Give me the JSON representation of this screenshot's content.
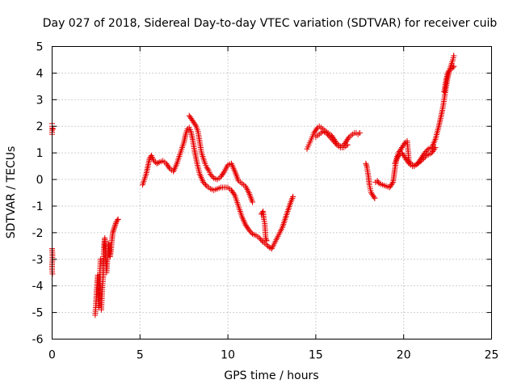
{
  "chart_data": {
    "type": "scatter",
    "title": "Day 027 of 2018, Sidereal Day-to-day VTEC variation (SDTVAR) for receiver cuib",
    "xlabel": "GPS time / hours",
    "ylabel": "SDTVAR / TECUs",
    "xlim": [
      0,
      25
    ],
    "ylim": [
      -6,
      5
    ],
    "xticks": [
      0,
      5,
      10,
      15,
      20,
      25
    ],
    "yticks": [
      -6,
      -5,
      -4,
      -3,
      -2,
      -1,
      0,
      1,
      2,
      3,
      4,
      5
    ],
    "grid": true,
    "marker": "+",
    "color": "#e60000",
    "segments": [
      {
        "name": "seg-0h",
        "x": [
          0.0,
          0.0,
          0.0,
          0.0,
          0.0,
          0.02,
          0.02,
          0.0,
          0.0,
          0.02,
          0.05
        ],
        "y": [
          1.7,
          1.85,
          2.0,
          2.1,
          -2.6,
          -2.8,
          -3.0,
          -3.2,
          -3.4,
          -3.55,
          1.9
        ]
      },
      {
        "name": "seg-3h",
        "x": [
          2.45,
          2.5,
          2.55,
          2.6,
          2.65,
          2.7,
          2.72,
          2.75,
          2.8,
          2.85,
          2.9,
          2.95,
          3.0,
          3.05,
          3.1,
          3.15,
          3.2,
          3.25,
          3.3,
          3.35,
          3.4,
          3.45,
          3.5,
          3.55,
          3.6,
          3.65,
          3.7,
          3.75
        ],
        "y": [
          -5.1,
          -4.6,
          -4.0,
          -3.6,
          -4.8,
          -4.3,
          -3.5,
          -3.0,
          -4.9,
          -4.2,
          -3.7,
          -2.5,
          -2.2,
          -2.8,
          -3.5,
          -3.0,
          -2.4,
          -2.6,
          -2.9,
          -2.7,
          -2.3,
          -2.0,
          -1.9,
          -1.8,
          -1.7,
          -1.6,
          -1.55,
          -1.5
        ]
      },
      {
        "name": "seg-lower-band",
        "x": [
          5.15,
          5.25,
          5.35,
          5.45,
          5.55,
          5.65,
          5.8,
          5.95,
          6.1,
          6.3,
          6.5,
          6.7,
          6.9,
          7.1,
          7.3,
          7.5,
          7.6,
          7.7,
          7.8,
          7.9,
          8.0,
          8.1,
          8.25,
          8.4,
          8.6,
          8.8,
          9.0,
          9.2,
          9.4,
          9.6,
          9.8,
          10.0,
          10.2,
          10.4,
          10.6,
          10.8,
          11.0,
          11.2,
          11.4,
          11.6,
          11.8,
          12.0,
          12.2,
          12.35,
          12.5,
          12.65,
          12.8,
          12.95,
          13.1,
          13.25,
          13.4,
          13.55,
          13.7
        ],
        "y": [
          -0.2,
          0.0,
          0.2,
          0.5,
          0.8,
          0.9,
          0.7,
          0.6,
          0.65,
          0.7,
          0.6,
          0.4,
          0.3,
          0.6,
          1.0,
          1.4,
          1.7,
          1.9,
          1.95,
          1.8,
          1.5,
          1.1,
          0.6,
          0.2,
          -0.1,
          -0.25,
          -0.35,
          -0.4,
          -0.35,
          -0.3,
          -0.3,
          -0.3,
          -0.4,
          -0.6,
          -1.0,
          -1.4,
          -1.7,
          -1.9,
          -2.05,
          -2.1,
          -2.2,
          -2.35,
          -2.45,
          -2.55,
          -2.6,
          -2.4,
          -2.2,
          -2.0,
          -1.8,
          -1.5,
          -1.2,
          -0.9,
          -0.65
        ]
      },
      {
        "name": "seg-upper-band",
        "x": [
          7.8,
          7.9,
          8.0,
          8.1,
          8.2,
          8.3,
          8.4,
          8.5,
          8.6,
          8.7,
          8.8,
          8.9,
          9.0,
          9.2,
          9.4,
          9.6,
          9.8,
          10.0,
          10.2,
          10.4,
          10.6,
          10.8,
          11.0,
          11.2,
          11.4
        ],
        "y": [
          2.4,
          2.3,
          2.2,
          2.1,
          2.0,
          1.8,
          1.4,
          1.0,
          0.8,
          0.6,
          0.45,
          0.35,
          0.2,
          0.05,
          0.0,
          0.1,
          0.3,
          0.55,
          0.6,
          0.3,
          -0.05,
          -0.15,
          -0.25,
          -0.5,
          -0.85
        ]
      },
      {
        "name": "seg-12h-drop",
        "x": [
          11.9,
          12.0,
          12.05,
          12.1,
          12.15,
          12.2
        ],
        "y": [
          -1.3,
          -1.2,
          -1.5,
          -1.65,
          -2.2,
          -2.3
        ]
      },
      {
        "name": "seg-15h",
        "x": [
          14.5,
          14.6,
          14.7,
          14.8,
          14.9,
          15.0,
          15.1,
          15.2,
          15.3,
          15.4,
          15.5,
          15.6,
          15.7,
          15.8,
          15.9,
          16.0,
          16.1,
          16.2,
          16.3,
          16.4,
          16.5,
          16.6,
          16.7,
          16.8,
          16.9,
          17.0,
          17.1,
          17.2,
          17.3,
          17.4,
          17.5
        ],
        "y": [
          1.15,
          1.3,
          1.45,
          1.6,
          1.75,
          1.85,
          1.95,
          2.0,
          1.95,
          1.9,
          1.85,
          1.8,
          1.75,
          1.7,
          1.65,
          1.55,
          1.45,
          1.35,
          1.3,
          1.25,
          1.25,
          1.3,
          1.4,
          1.5,
          1.6,
          1.65,
          1.7,
          1.75,
          1.75,
          1.7,
          1.75
        ]
      },
      {
        "name": "seg-15h-lower",
        "x": [
          15.0,
          15.2,
          15.4,
          15.6,
          15.8,
          16.0,
          16.2,
          16.4,
          16.6,
          16.8
        ],
        "y": [
          1.6,
          1.7,
          1.8,
          1.75,
          1.6,
          1.45,
          1.3,
          1.2,
          1.2,
          1.3
        ]
      },
      {
        "name": "seg-18h",
        "x": [
          17.85,
          17.9,
          17.95,
          18.0,
          18.05,
          18.1,
          18.15,
          18.2,
          18.25,
          18.3,
          18.35
        ],
        "y": [
          0.6,
          0.5,
          0.3,
          0.1,
          -0.2,
          -0.35,
          -0.5,
          -0.55,
          -0.6,
          -0.65,
          -0.7
        ]
      },
      {
        "name": "seg-19h",
        "x": [
          18.4,
          18.5,
          18.6,
          18.8,
          19.0,
          19.2,
          19.4,
          19.5,
          19.6,
          19.7,
          19.8,
          19.9,
          20.0,
          20.1,
          20.2,
          20.3,
          20.4,
          20.5,
          20.6,
          20.7,
          20.8,
          21.0,
          21.2,
          21.4,
          21.6,
          21.8,
          22.0,
          22.1,
          22.2,
          22.3,
          22.4,
          22.5,
          22.6,
          22.7,
          22.8,
          22.85
        ],
        "y": [
          -0.1,
          -0.05,
          -0.15,
          -0.2,
          -0.25,
          -0.3,
          -0.1,
          0.4,
          0.8,
          1.0,
          1.1,
          1.2,
          1.3,
          1.4,
          1.45,
          0.7,
          0.6,
          0.55,
          0.5,
          0.55,
          0.6,
          0.8,
          1.0,
          1.15,
          1.2,
          1.5,
          2.0,
          2.3,
          2.6,
          3.0,
          3.4,
          3.8,
          4.1,
          4.3,
          4.5,
          4.65
        ]
      },
      {
        "name": "seg-19h-lower",
        "x": [
          19.5,
          19.7,
          19.9,
          20.1,
          20.3,
          20.5,
          20.7,
          21.0,
          21.3,
          21.6,
          21.8
        ],
        "y": [
          0.6,
          0.9,
          1.0,
          0.8,
          0.6,
          0.5,
          0.55,
          0.7,
          0.9,
          1.0,
          1.2
        ]
      },
      {
        "name": "seg-22h-upper",
        "x": [
          22.3,
          22.4,
          22.5,
          22.6,
          22.7,
          22.8,
          22.85
        ],
        "y": [
          3.3,
          3.7,
          4.0,
          4.1,
          4.15,
          4.2,
          4.25
        ]
      }
    ]
  }
}
